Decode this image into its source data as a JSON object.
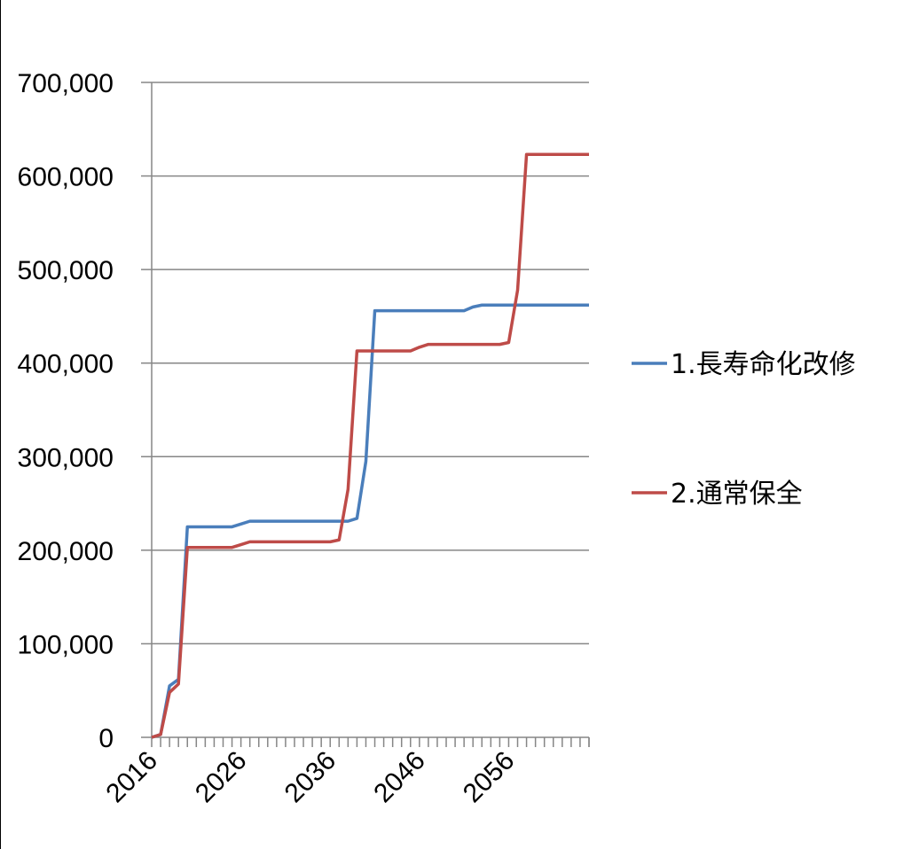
{
  "chart_data": {
    "type": "line",
    "title": "",
    "xlabel": "",
    "ylabel": "",
    "x": [
      2016,
      2017,
      2018,
      2019,
      2020,
      2021,
      2022,
      2023,
      2024,
      2025,
      2026,
      2027,
      2028,
      2029,
      2030,
      2031,
      2032,
      2033,
      2034,
      2035,
      2036,
      2037,
      2038,
      2039,
      2040,
      2041,
      2042,
      2043,
      2044,
      2045,
      2046,
      2047,
      2048,
      2049,
      2050,
      2051,
      2052,
      2053,
      2054,
      2055,
      2056,
      2057,
      2058,
      2059,
      2060,
      2061,
      2062,
      2063,
      2064,
      2065
    ],
    "x_tick_labels": [
      "2016",
      "2026",
      "2036",
      "2046",
      "2056"
    ],
    "x_tick_values": [
      2016,
      2026,
      2036,
      2046,
      2056
    ],
    "y_tick_labels": [
      "0",
      "100,000",
      "200,000",
      "300,000",
      "400,000",
      "500,000",
      "600,000",
      "700,000"
    ],
    "y_tick_values": [
      0,
      100000,
      200000,
      300000,
      400000,
      500000,
      600000,
      700000
    ],
    "ylim": [
      0,
      700000
    ],
    "grid": true,
    "legend_position": "right",
    "series": [
      {
        "name": "1.長寿命化改修",
        "color": "#4A7EBB",
        "values": [
          0,
          3000,
          55000,
          62000,
          225000,
          225000,
          225000,
          225000,
          225000,
          225000,
          228000,
          231000,
          231000,
          231000,
          231000,
          231000,
          231000,
          231000,
          231000,
          231000,
          231000,
          231000,
          231000,
          234000,
          295000,
          456000,
          456000,
          456000,
          456000,
          456000,
          456000,
          456000,
          456000,
          456000,
          456000,
          456000,
          460000,
          462000,
          462000,
          462000,
          462000,
          462000,
          462000,
          462000,
          462000,
          462000,
          462000,
          462000,
          462000,
          462000
        ]
      },
      {
        "name": "2.通常保全",
        "color": "#BE4B48",
        "values": [
          0,
          3000,
          48000,
          57000,
          203000,
          203000,
          203000,
          203000,
          203000,
          203000,
          206000,
          209000,
          209000,
          209000,
          209000,
          209000,
          209000,
          209000,
          209000,
          209000,
          209000,
          211000,
          265000,
          413000,
          413000,
          413000,
          413000,
          413000,
          413000,
          413000,
          417000,
          420000,
          420000,
          420000,
          420000,
          420000,
          420000,
          420000,
          420000,
          420000,
          422000,
          478000,
          623000,
          623000,
          623000,
          623000,
          623000,
          623000,
          623000,
          623000
        ]
      }
    ]
  }
}
